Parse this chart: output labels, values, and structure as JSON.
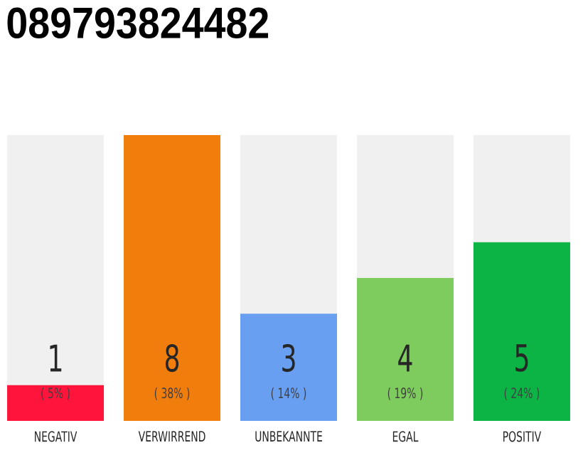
{
  "chart_data": {
    "type": "bar",
    "title": "089793824482",
    "categories": [
      "NEGATIV",
      "VERWIRREND",
      "UNBEKANNTE",
      "EGAL",
      "POSITIV"
    ],
    "values": [
      1,
      8,
      3,
      4,
      5
    ],
    "colors": [
      "#ff143c",
      "#f07d0c",
      "#689ff0",
      "#7ecb5e",
      "#0cb446"
    ],
    "data_labels": true,
    "annotations": [
      "( 5% )",
      "( 38% )",
      "( 14% )",
      "( 19% )",
      "( 24% )"
    ]
  }
}
